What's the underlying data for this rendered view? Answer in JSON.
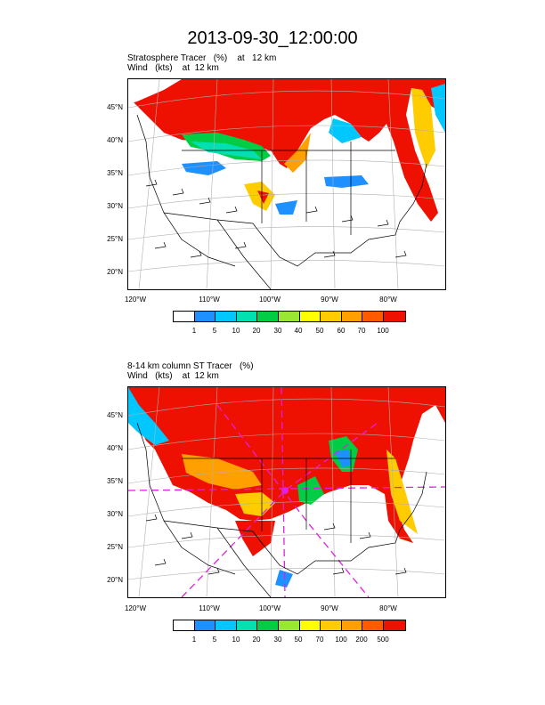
{
  "title": "2013-09-30_12:00:00",
  "panel1": {
    "line1": "Stratosphere Tracer   (%)    at   12 km",
    "line2": "Wind   (kts)    at  12 km",
    "colorbar_labels": [
      "1",
      "5",
      "10",
      "20",
      "30",
      "40",
      "50",
      "60",
      "70",
      "100"
    ]
  },
  "panel2": {
    "line1": "8-14 km column ST Tracer   (%)",
    "line2": "Wind   (kts)    at  12 km",
    "colorbar_labels": [
      "1",
      "5",
      "10",
      "20",
      "30",
      "50",
      "70",
      "100",
      "200",
      "500"
    ]
  },
  "lat_labels": [
    "45°N",
    "40°N",
    "35°N",
    "30°N",
    "25°N",
    "20°N"
  ],
  "lon_labels": [
    "120°W",
    "110°W",
    "100°W",
    "90°W",
    "80°W"
  ],
  "colorbar_colors": [
    "#ffffff",
    "#1e90ff",
    "#00c8ff",
    "#00e0b0",
    "#00cc44",
    "#99e633",
    "#ffff00",
    "#ffcc00",
    "#ffa000",
    "#ff5a00",
    "#ee1000"
  ]
}
